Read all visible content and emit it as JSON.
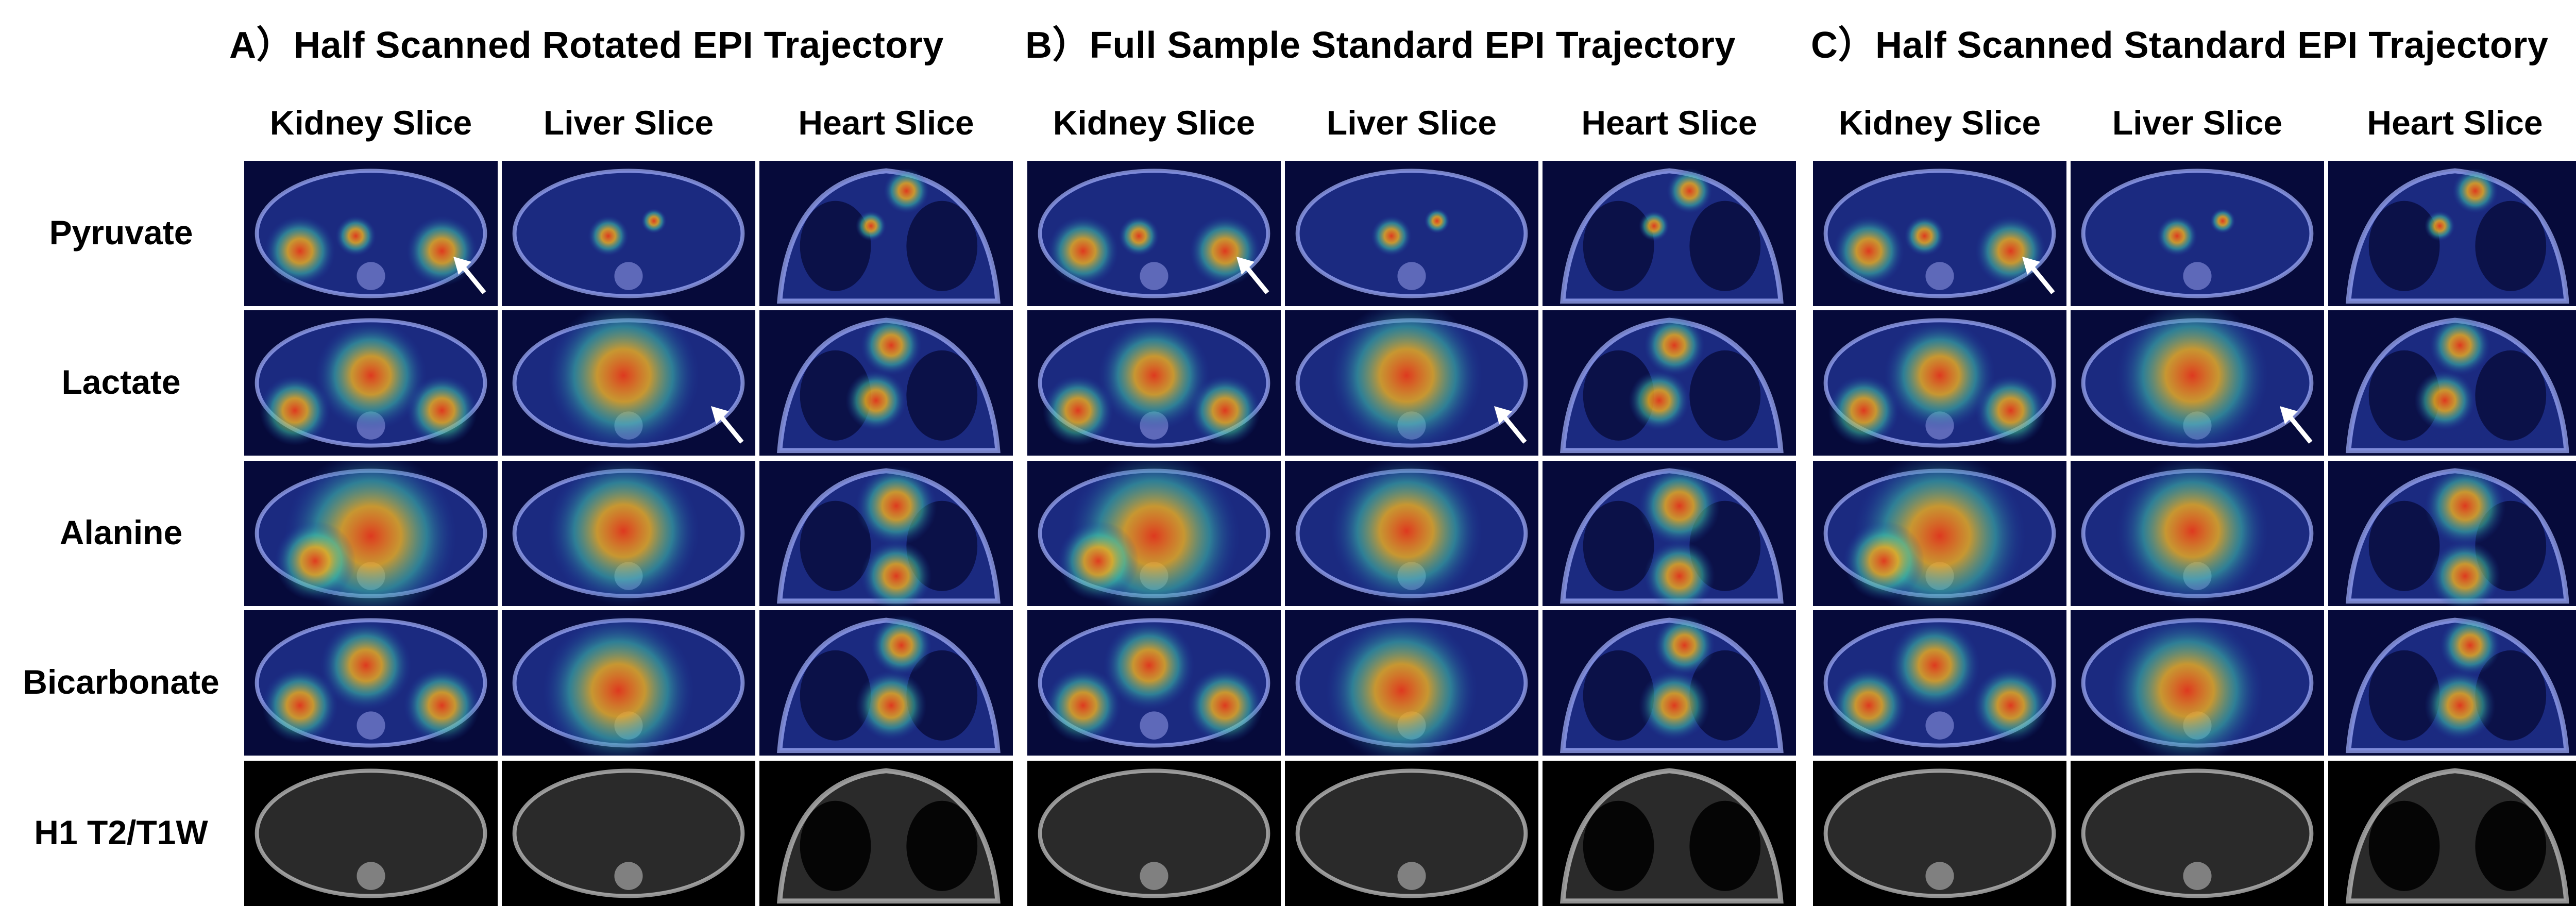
{
  "panels": [
    {
      "letter": "A",
      "title": "A）Half Scanned Rotated EPI Trajectory"
    },
    {
      "letter": "B",
      "title": "B）Full Sample Standard EPI Trajectory"
    },
    {
      "letter": "C",
      "title": "C）Half Scanned Standard EPI Trajectory"
    }
  ],
  "slices": [
    "Kidney Slice",
    "Liver Slice",
    "Heart Slice"
  ],
  "rows": [
    "Pyruvate",
    "Lactate",
    "Alanine",
    "Bicarbonate",
    "H1 T2/T1W"
  ],
  "arrows": [
    {
      "panel": 0,
      "row": 0,
      "slice": 0
    },
    {
      "panel": 1,
      "row": 0,
      "slice": 0
    },
    {
      "panel": 2,
      "row": 0,
      "slice": 0
    },
    {
      "panel": 0,
      "row": 1,
      "slice": 1
    },
    {
      "panel": 1,
      "row": 1,
      "slice": 1
    },
    {
      "panel": 2,
      "row": 1,
      "slice": 1
    }
  ]
}
